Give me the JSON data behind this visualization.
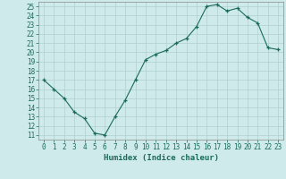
{
  "x": [
    0,
    1,
    2,
    3,
    4,
    5,
    6,
    7,
    8,
    9,
    10,
    11,
    12,
    13,
    14,
    15,
    16,
    17,
    18,
    19,
    20,
    21,
    22,
    23
  ],
  "y": [
    17.0,
    16.0,
    15.0,
    13.5,
    12.8,
    11.2,
    11.0,
    13.0,
    14.8,
    17.0,
    19.2,
    19.8,
    20.2,
    21.0,
    21.5,
    22.8,
    25.0,
    25.2,
    24.5,
    24.8,
    23.8,
    23.2,
    20.5,
    20.3
  ],
  "xlabel": "Humidex (Indice chaleur)",
  "ylabel": "",
  "xlim": [
    -0.5,
    23.5
  ],
  "ylim": [
    10.5,
    25.5
  ],
  "yticks": [
    11,
    12,
    13,
    14,
    15,
    16,
    17,
    18,
    19,
    20,
    21,
    22,
    23,
    24,
    25
  ],
  "xticks": [
    0,
    1,
    2,
    3,
    4,
    5,
    6,
    7,
    8,
    9,
    10,
    11,
    12,
    13,
    14,
    15,
    16,
    17,
    18,
    19,
    20,
    21,
    22,
    23
  ],
  "line_color": "#1a6b5a",
  "marker_color": "#1a6b5a",
  "bg_color": "#ceeaea",
  "grid_color": "#b0d0d0",
  "axis_color": "#888888",
  "label_color": "#1a6b5a",
  "tick_fontsize": 5.5,
  "xlabel_fontsize": 6.5
}
